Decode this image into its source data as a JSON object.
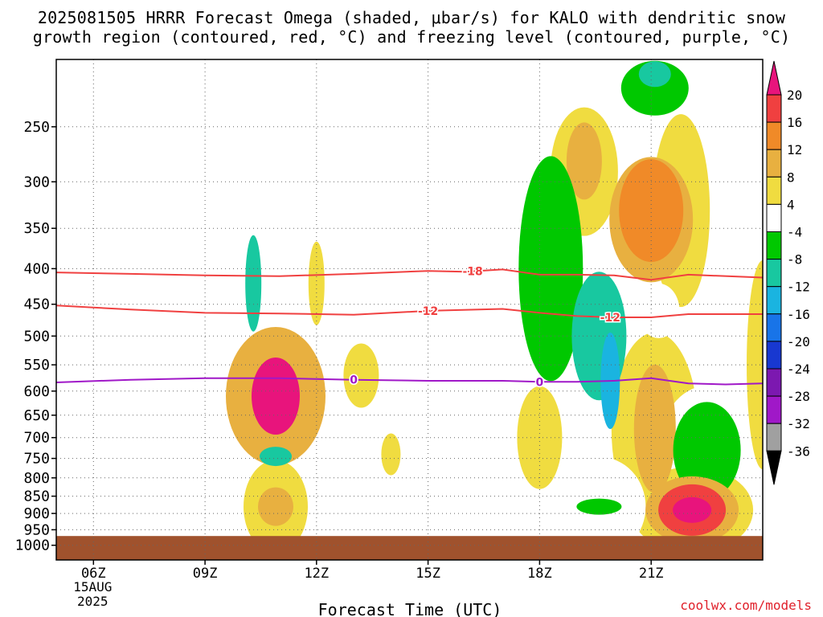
{
  "title_line1": "2025081505 HRRR Forecast Omega (shaded, μbar/s) for KALO with dendritic snow",
  "title_line2": "growth region (contoured, red, °C) and freezing level (contoured, purple, °C)",
  "credit": "coolwx.com/models",
  "chart_data": {
    "type": "heatmap",
    "title": "2025081505 HRRR Forecast Omega (shaded, μbar/s) for KALO with dendritic snow growth region (contoured, red, °C) and freezing level (contoured, purple, °C)",
    "xlabel": "Forecast Time (UTC)",
    "ylabel": "",
    "x_axis": {
      "range_hours_utc": [
        5,
        24
      ],
      "ticks": [
        {
          "hour": 6,
          "label": "06Z",
          "sublabels": [
            "15AUG",
            "2025"
          ]
        },
        {
          "hour": 9,
          "label": "09Z"
        },
        {
          "hour": 12,
          "label": "12Z"
        },
        {
          "hour": 15,
          "label": "15Z"
        },
        {
          "hour": 18,
          "label": "18Z"
        },
        {
          "hour": 21,
          "label": "21Z"
        }
      ]
    },
    "y_axis": {
      "scale": "log-pressure, inverted",
      "range_mb": [
        200,
        1050
      ],
      "ticks": [
        250,
        300,
        350,
        400,
        450,
        500,
        550,
        600,
        650,
        700,
        750,
        800,
        850,
        900,
        950,
        1000
      ],
      "grid": "dotted"
    },
    "terrain_below_mb": 970,
    "colorbar": {
      "placement": "right",
      "levels": [
        "20",
        "16",
        "12",
        "8",
        "4",
        "-4",
        "-8",
        "-12",
        "-16",
        "-20",
        "-24",
        "-28",
        "-32",
        "-36"
      ],
      "colors": [
        "#e8147c",
        "#f04040",
        "#f08a28",
        "#e8b040",
        "#f0dc40",
        "#ffffff",
        "#00c800",
        "#18c8a0",
        "#1ab4e0",
        "#1874e8",
        "#1838d0",
        "#7c18b0",
        "#a018c8",
        "#a0a0a0",
        "#000000"
      ]
    },
    "omega_cells": [
      {
        "t": 21.1,
        "p": 210,
        "value": -12
      },
      {
        "t": 21.1,
        "p": 220,
        "value": -8
      },
      {
        "t": 19.2,
        "p": 280,
        "value": 8
      },
      {
        "t": 19.2,
        "p": 290,
        "value": 4
      },
      {
        "t": 21.0,
        "p": 330,
        "value": 12
      },
      {
        "t": 21.0,
        "p": 340,
        "value": 8
      },
      {
        "t": 21.8,
        "p": 330,
        "value": 4
      },
      {
        "t": 11.9,
        "p": 275,
        "value": -4
      },
      {
        "t": 10.3,
        "p": 420,
        "value": -12
      },
      {
        "t": 10.3,
        "p": 420,
        "value": -4
      },
      {
        "t": 12.0,
        "p": 420,
        "value": 4
      },
      {
        "t": 13.1,
        "p": 400,
        "value": -4
      },
      {
        "t": 18.3,
        "p": 400,
        "value": -8
      },
      {
        "t": 19.6,
        "p": 500,
        "value": -12
      },
      {
        "t": 19.9,
        "p": 580,
        "value": -16
      },
      {
        "t": 6.9,
        "p": 620,
        "value": -4
      },
      {
        "t": 10.9,
        "p": 610,
        "value": 20
      },
      {
        "t": 10.9,
        "p": 610,
        "value": 8
      },
      {
        "t": 13.2,
        "p": 570,
        "value": 4
      },
      {
        "t": 14.0,
        "p": 740,
        "value": 4
      },
      {
        "t": 18.0,
        "p": 700,
        "value": 4
      },
      {
        "t": 10.9,
        "p": 745,
        "value": -12
      },
      {
        "t": 10.9,
        "p": 745,
        "value": -4
      },
      {
        "t": 12.8,
        "p": 840,
        "value": -4
      },
      {
        "t": 10.9,
        "p": 880,
        "value": 8
      },
      {
        "t": 10.9,
        "p": 880,
        "value": 4
      },
      {
        "t": 21.1,
        "p": 680,
        "value": 8
      },
      {
        "t": 21.1,
        "p": 680,
        "value": 4
      },
      {
        "t": 22.5,
        "p": 730,
        "value": -8
      },
      {
        "t": 22.5,
        "p": 730,
        "value": -4
      },
      {
        "t": 22.1,
        "p": 890,
        "value": 20
      },
      {
        "t": 22.1,
        "p": 890,
        "value": 16
      },
      {
        "t": 22.1,
        "p": 890,
        "value": 8
      },
      {
        "t": 22.1,
        "p": 890,
        "value": 4
      },
      {
        "t": 19.6,
        "p": 880,
        "value": -8
      },
      {
        "t": 19.6,
        "p": 880,
        "value": -4
      },
      {
        "t": 21.2,
        "p": 460,
        "value": -4
      },
      {
        "t": 24.0,
        "p": 285,
        "value": -4
      },
      {
        "t": 24.0,
        "p": 550,
        "value": 4
      }
    ],
    "contours": [
      {
        "name": "-18",
        "color": "#f04040",
        "kind": "dendritic",
        "label_positions": [
          {
            "t": 16.2
          }
        ],
        "points": [
          [
            5,
            405
          ],
          [
            7,
            407
          ],
          [
            9,
            409
          ],
          [
            11,
            410
          ],
          [
            13,
            407
          ],
          [
            15,
            403
          ],
          [
            16,
            404
          ],
          [
            17,
            401
          ],
          [
            18,
            408
          ],
          [
            19,
            408
          ],
          [
            20,
            409
          ],
          [
            21,
            415
          ],
          [
            22,
            408
          ],
          [
            24,
            412
          ]
        ]
      },
      {
        "name": "-12",
        "color": "#f04040",
        "kind": "dendritic",
        "label_positions": [
          {
            "t": 15.0
          },
          {
            "t": 19.9
          }
        ],
        "points": [
          [
            5,
            452
          ],
          [
            7,
            458
          ],
          [
            9,
            463
          ],
          [
            11,
            464
          ],
          [
            13,
            466
          ],
          [
            15,
            460
          ],
          [
            17,
            457
          ],
          [
            18,
            463
          ],
          [
            19,
            468
          ],
          [
            20,
            470
          ],
          [
            21,
            470
          ],
          [
            22,
            465
          ],
          [
            24,
            465
          ]
        ]
      },
      {
        "name": "0",
        "color": "#a018c8",
        "kind": "freezing",
        "label_positions": [
          {
            "t": 13.0
          },
          {
            "t": 18.0
          }
        ],
        "points": [
          [
            5,
            583
          ],
          [
            7,
            578
          ],
          [
            9,
            575
          ],
          [
            11,
            575
          ],
          [
            13,
            578
          ],
          [
            15,
            580
          ],
          [
            17,
            580
          ],
          [
            18,
            582
          ],
          [
            19,
            582
          ],
          [
            20,
            580
          ],
          [
            21,
            575
          ],
          [
            22,
            585
          ],
          [
            23,
            587
          ],
          [
            24,
            585
          ]
        ]
      }
    ]
  }
}
